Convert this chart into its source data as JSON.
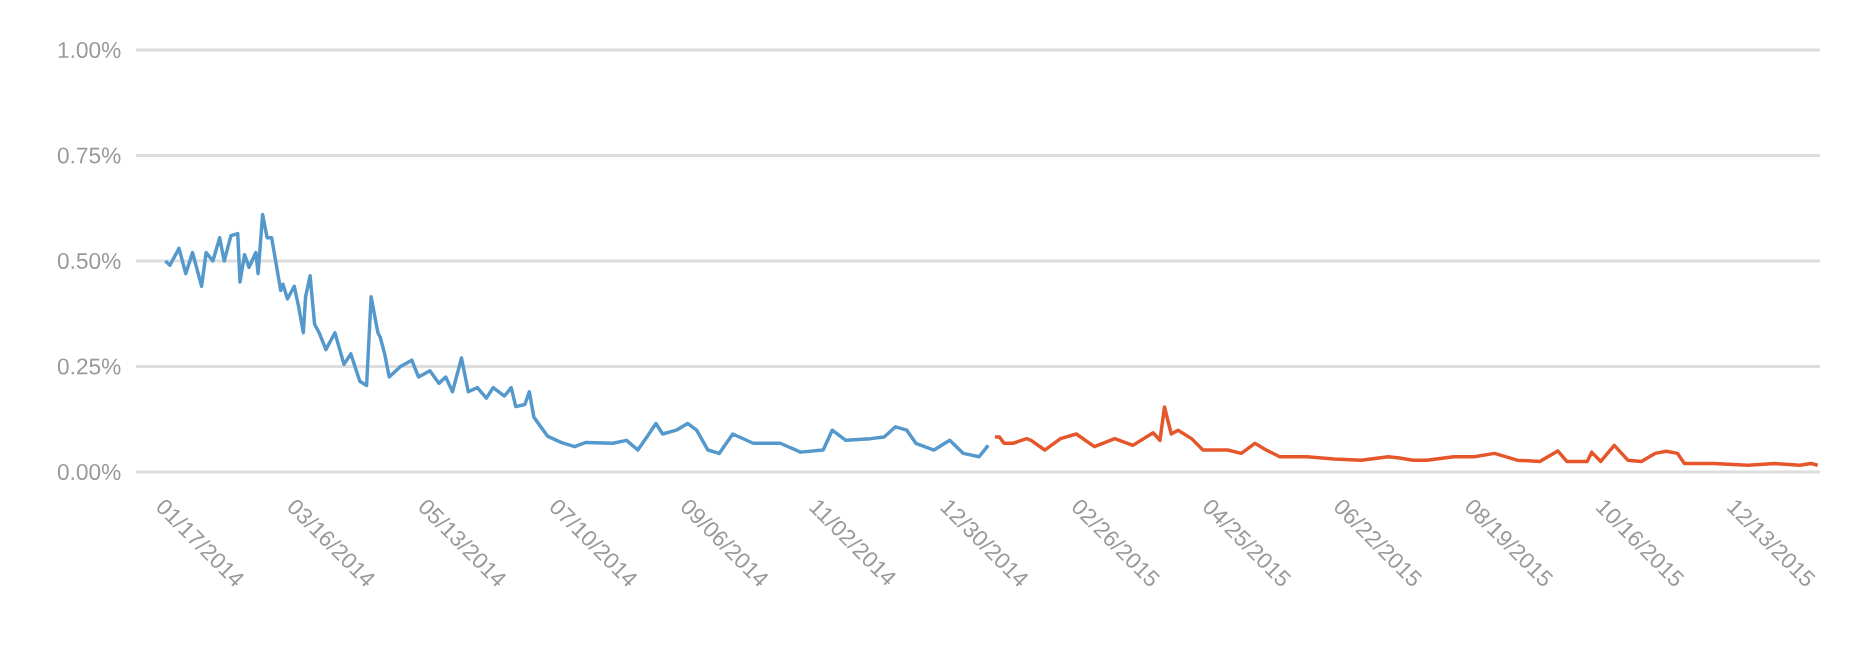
{
  "chart_data": {
    "type": "line",
    "grid": "y",
    "xlim": [
      "2014-01-02",
      "2016-01-17"
    ],
    "xticks": [
      {
        "value": "2014-01-17",
        "label": "01/17/2014"
      },
      {
        "value": "2014-03-16",
        "label": "03/16/2014"
      },
      {
        "value": "2014-05-13",
        "label": "05/13/2014"
      },
      {
        "value": "2014-07-10",
        "label": "07/10/2014"
      },
      {
        "value": "2014-09-06",
        "label": "09/06/2014"
      },
      {
        "value": "2014-11-02",
        "label": "11/02/2014"
      },
      {
        "value": "2014-12-30",
        "label": "12/30/2014"
      },
      {
        "value": "2015-02-26",
        "label": "02/26/2015"
      },
      {
        "value": "2015-04-25",
        "label": "04/25/2015"
      },
      {
        "value": "2015-06-22",
        "label": "06/22/2015"
      },
      {
        "value": "2015-08-19",
        "label": "08/19/2015"
      },
      {
        "value": "2015-10-16",
        "label": "10/16/2015"
      },
      {
        "value": "2015-12-13",
        "label": "12/13/2015"
      }
    ],
    "ylim": [
      0,
      1
    ],
    "yticks": [
      {
        "value": 0,
        "label": "0.00%"
      },
      {
        "value": 0.25,
        "label": "0.25%"
      },
      {
        "value": 0.5,
        "label": "0.50%"
      },
      {
        "value": 0.75,
        "label": "0.75%"
      },
      {
        "value": 1,
        "label": "1.00%"
      }
    ],
    "series": [
      {
        "color": "#5599cc",
        "x": [
          "2014-01-15",
          "2014-01-17",
          "2014-01-21",
          "2014-01-24",
          "2014-01-27",
          "2014-01-31",
          "2014-02-02",
          "2014-02-05",
          "2014-02-08",
          "2014-02-10",
          "2014-02-13",
          "2014-02-16",
          "2014-02-17",
          "2014-02-19",
          "2014-02-21",
          "2014-02-24",
          "2014-02-25",
          "2014-02-27",
          "2014-03-01",
          "2014-03-03",
          "2014-03-07",
          "2014-03-08",
          "2014-03-10",
          "2014-03-13",
          "2014-03-15",
          "2014-03-17",
          "2014-03-18",
          "2014-03-20",
          "2014-03-22",
          "2014-03-24",
          "2014-03-27",
          "2014-03-31",
          "2014-04-04",
          "2014-04-07",
          "2014-04-11",
          "2014-04-14",
          "2014-04-16",
          "2014-04-19",
          "2014-04-20",
          "2014-04-22",
          "2014-04-24",
          "2014-04-29",
          "2014-05-04",
          "2014-05-07",
          "2014-05-12",
          "2014-05-16",
          "2014-05-19",
          "2014-05-22",
          "2014-05-26",
          "2014-05-29",
          "2014-06-02",
          "2014-06-06",
          "2014-06-09",
          "2014-06-14",
          "2014-06-17",
          "2014-06-19",
          "2014-06-23",
          "2014-06-25",
          "2014-06-27",
          "2014-07-03",
          "2014-07-09",
          "2014-07-15",
          "2014-07-20",
          "2014-08-01",
          "2014-08-07",
          "2014-08-12",
          "2014-08-16",
          "2014-08-20",
          "2014-08-23",
          "2014-08-29",
          "2014-09-03",
          "2014-09-07",
          "2014-09-12",
          "2014-09-17",
          "2014-09-23",
          "2014-10-02",
          "2014-10-14",
          "2014-10-23",
          "2014-11-02",
          "2014-11-06",
          "2014-11-12",
          "2014-11-23",
          "2014-11-29",
          "2014-12-04",
          "2014-12-09",
          "2014-12-13",
          "2014-12-21",
          "2014-12-28",
          "2015-01-03",
          "2015-01-10",
          "2015-01-14"
        ],
        "values": [
          0.5,
          0.49,
          0.53,
          0.47,
          0.52,
          0.44,
          0.52,
          0.5,
          0.555,
          0.5,
          0.56,
          0.565,
          0.45,
          0.515,
          0.485,
          0.52,
          0.47,
          0.61,
          0.555,
          0.555,
          0.43,
          0.445,
          0.41,
          0.44,
          0.39,
          0.33,
          0.415,
          0.465,
          0.35,
          0.33,
          0.29,
          0.33,
          0.255,
          0.28,
          0.215,
          0.205,
          0.415,
          0.33,
          0.32,
          0.28,
          0.225,
          0.25,
          0.265,
          0.225,
          0.24,
          0.21,
          0.225,
          0.19,
          0.27,
          0.19,
          0.2,
          0.175,
          0.2,
          0.18,
          0.2,
          0.155,
          0.16,
          0.19,
          0.13,
          0.085,
          0.07,
          0.06,
          0.07,
          0.068,
          0.075,
          0.052,
          0.083,
          0.115,
          0.09,
          0.099,
          0.115,
          0.099,
          0.052,
          0.044,
          0.09,
          0.068,
          0.068,
          0.047,
          0.052,
          0.099,
          0.075,
          0.079,
          0.083,
          0.107,
          0.099,
          0.068,
          0.052,
          0.075,
          0.044,
          0.036,
          0.063
        ]
      },
      {
        "color": "#e5562b",
        "x": [
          "2015-01-17",
          "2015-01-19",
          "2015-01-21",
          "2015-01-25",
          "2015-01-31",
          "2015-02-02",
          "2015-02-08",
          "2015-02-15",
          "2015-02-22",
          "2015-03-02",
          "2015-03-11",
          "2015-03-19",
          "2015-03-28",
          "2015-03-31",
          "2015-04-02",
          "2015-04-05",
          "2015-04-08",
          "2015-04-14",
          "2015-04-19",
          "2015-04-30",
          "2015-05-06",
          "2015-05-12",
          "2015-05-17",
          "2015-05-23",
          "2015-06-04",
          "2015-06-16",
          "2015-06-28",
          "2015-07-10",
          "2015-07-15",
          "2015-07-21",
          "2015-07-27",
          "2015-08-08",
          "2015-08-17",
          "2015-08-26",
          "2015-09-05",
          "2015-09-15",
          "2015-09-23",
          "2015-09-27",
          "2015-10-06",
          "2015-10-08",
          "2015-10-12",
          "2015-10-18",
          "2015-10-24",
          "2015-10-30",
          "2015-11-05",
          "2015-11-10",
          "2015-11-15",
          "2015-11-18",
          "2015-12-01",
          "2015-12-16",
          "2015-12-28",
          "2016-01-08",
          "2016-01-13",
          "2016-01-16"
        ],
        "values": [
          0.083,
          0.083,
          0.068,
          0.068,
          0.079,
          0.075,
          0.052,
          0.079,
          0.09,
          0.06,
          0.079,
          0.063,
          0.093,
          0.075,
          0.154,
          0.09,
          0.099,
          0.079,
          0.052,
          0.052,
          0.044,
          0.068,
          0.052,
          0.036,
          0.036,
          0.031,
          0.028,
          0.036,
          0.033,
          0.028,
          0.028,
          0.036,
          0.036,
          0.044,
          0.028,
          0.025,
          0.05,
          0.025,
          0.025,
          0.047,
          0.025,
          0.063,
          0.028,
          0.025,
          0.044,
          0.049,
          0.044,
          0.02,
          0.02,
          0.016,
          0.02,
          0.016,
          0.02,
          0.016
        ]
      }
    ]
  }
}
